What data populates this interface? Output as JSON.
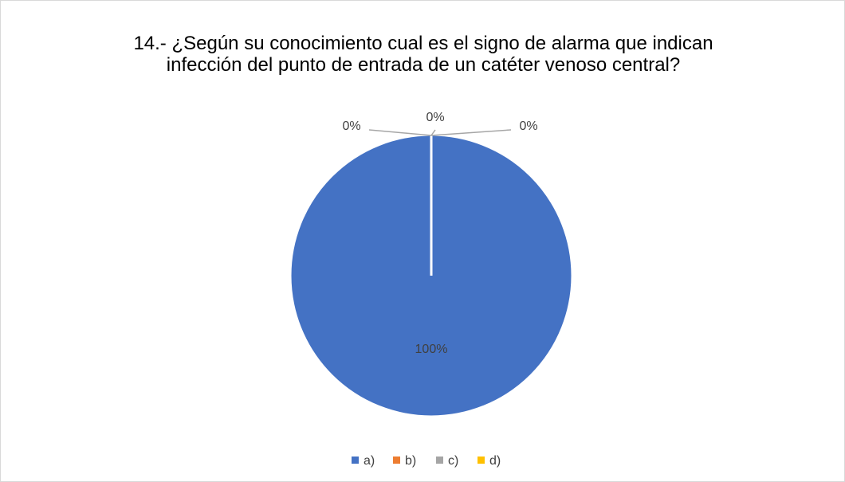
{
  "chart_data": {
    "type": "pie",
    "title": "14.- ¿Según su conocimiento cual es el signo de alarma que indican infección del punto de entrada de un catéter venoso central?",
    "categories": [
      "a)",
      "b)",
      "c)",
      "d)"
    ],
    "values": [
      100,
      0,
      0,
      0
    ],
    "value_labels": [
      "100%",
      "0%",
      "0%",
      "0%"
    ],
    "colors": [
      "#4472c4",
      "#ed7d31",
      "#a5a5a5",
      "#ffc000"
    ],
    "legend": "bottom"
  }
}
